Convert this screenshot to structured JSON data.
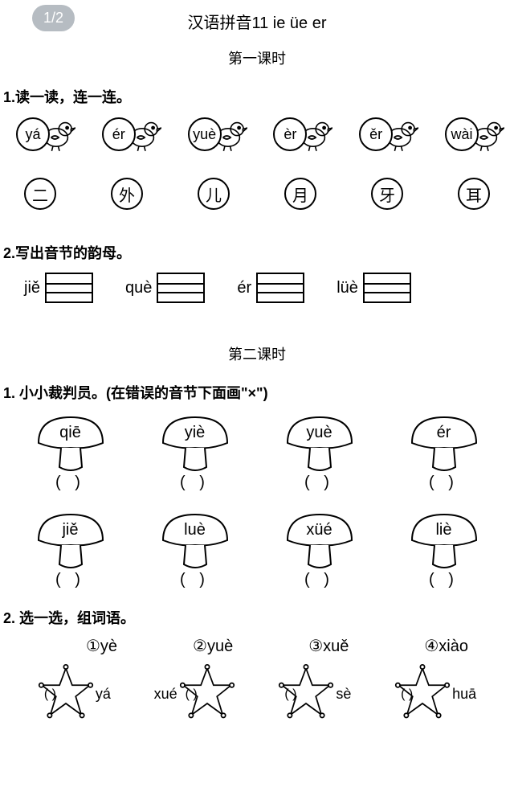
{
  "badge": "1/2",
  "title": "汉语拼音11 ie üe er",
  "lesson1_title": "第一课时",
  "ex1_heading": "1.读一读，连一连。",
  "birds": [
    "yá",
    "ér",
    "yuè",
    "èr",
    "ěr",
    "wài"
  ],
  "chars": [
    "二",
    "外",
    "儿",
    "月",
    "牙",
    "耳"
  ],
  "ex2_heading": "2.写出音节的韵母。",
  "yunmu": [
    "jiě",
    "què",
    "ér",
    "lüè"
  ],
  "lesson2_title": "第二课时",
  "ex3_heading": "1.  小小裁判员。(在错误的音节下面画\"×\")",
  "mushrooms_row1": [
    "qiē",
    "yiè",
    "yuè",
    "ér"
  ],
  "mushrooms_row2": [
    "jiě",
    "luè",
    "xüé",
    "liè"
  ],
  "paren_text": "(      )",
  "ex4_heading": "2.  选一选，组词语。",
  "options": [
    "①yè",
    "②yuè",
    "③xuě",
    "④xiào"
  ],
  "stars": [
    {
      "paren": "(   )",
      "after": "yá"
    },
    {
      "before": "xué",
      "paren": "(   )"
    },
    {
      "paren": "(   )",
      "after": "sè"
    },
    {
      "paren": "(   )",
      "after": "huā"
    }
  ],
  "colors": {
    "stroke": "#000000",
    "bg": "#ffffff"
  }
}
